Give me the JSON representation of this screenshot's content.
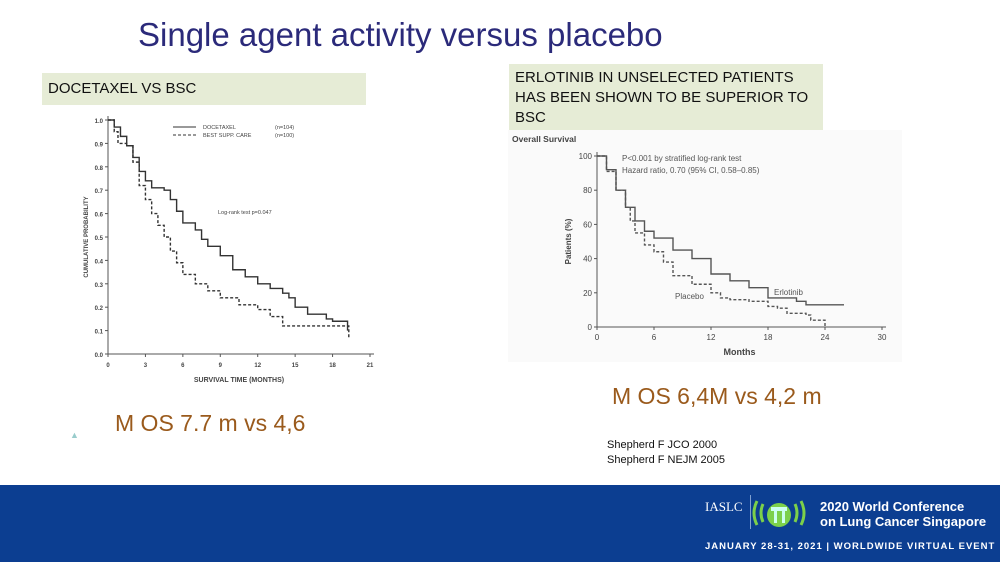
{
  "slide": {
    "title": "Single agent activity versus placebo",
    "label_left": "DOCETAXEL VS BSC",
    "label_right": "ERLOTINIB IN UNSELECTED PATIENTS HAS BEEN  SHOWN TO BE SUPERIOR TO BSC",
    "mos_left": "M OS 7.7 m vs 4,6",
    "mos_right": "M OS  6,4M  vs 4,2 m",
    "refs": [
      "Shepherd F  JCO 2000",
      "Shepherd F  NEJM 2005"
    ]
  },
  "footer": {
    "org": "IASLC",
    "conference_line1": "2020 World Conference",
    "conference_line2": "on Lung Cancer Singapore",
    "dates": "JANUARY 28-31, 2021 | WORLDWIDE VIRTUAL EVENT",
    "background": "#0c3e91"
  },
  "chart_data": [
    {
      "type": "line",
      "step": true,
      "xlabel": "SURVIVAL TIME (MONTHS)",
      "ylabel": "CUMULATIVE PROBABILITY",
      "xlim": [
        0,
        21
      ],
      "ylim": [
        0,
        1
      ],
      "xticks": [
        0,
        3,
        6,
        9,
        12,
        15,
        18,
        21
      ],
      "yticks": [
        "0.0",
        "0.1",
        "0.2",
        "0.3",
        "0.4",
        "0.5",
        "0.6",
        "0.7",
        "0.8",
        "0.9",
        "1.0"
      ],
      "annotation": "Log-rank test  p=0.047",
      "legend_placement": "top",
      "series": [
        {
          "name": "DOCETAXEL",
          "n": "(n=104)",
          "style": "solid",
          "x": [
            0,
            0.5,
            1,
            1.5,
            2,
            2.5,
            3,
            3.5,
            4.5,
            5,
            5.5,
            6,
            7,
            7.5,
            8,
            9,
            10,
            11,
            12,
            13,
            14,
            14.5,
            15,
            16,
            17.5,
            18,
            19,
            19.2
          ],
          "y": [
            1,
            0.97,
            0.93,
            0.89,
            0.84,
            0.78,
            0.74,
            0.71,
            0.7,
            0.66,
            0.61,
            0.56,
            0.53,
            0.49,
            0.46,
            0.42,
            0.36,
            0.33,
            0.3,
            0.28,
            0.26,
            0.24,
            0.2,
            0.17,
            0.15,
            0.14,
            0.14,
            0.1
          ]
        },
        {
          "name": "BEST SUPP. CARE",
          "n": "(n=100)",
          "style": "dashed",
          "x": [
            0,
            0.5,
            0.8,
            1.5,
            2,
            2.5,
            3,
            3.5,
            4,
            4.5,
            5,
            5.5,
            6,
            7,
            8,
            9,
            10,
            10.5,
            12,
            13,
            14,
            19,
            19.3
          ],
          "y": [
            1,
            0.95,
            0.9,
            0.89,
            0.82,
            0.72,
            0.66,
            0.6,
            0.55,
            0.5,
            0.44,
            0.39,
            0.34,
            0.3,
            0.27,
            0.24,
            0.24,
            0.21,
            0.19,
            0.16,
            0.12,
            0.12,
            0.07
          ]
        }
      ]
    },
    {
      "type": "line",
      "step": true,
      "title": "Overall Survival",
      "xlabel": "Months",
      "ylabel": "Patients (%)",
      "xlim": [
        0,
        30
      ],
      "ylim": [
        0,
        100
      ],
      "xticks": [
        0,
        6,
        12,
        18,
        24,
        30
      ],
      "yticks": [
        0,
        20,
        40,
        60,
        80,
        100
      ],
      "annotation_lines": [
        "P<0.001 by stratified log-rank test",
        "Hazard ratio, 0.70 (95% CI, 0.58–0.85)"
      ],
      "series": [
        {
          "name": "Erlotinib",
          "style": "solid",
          "x": [
            0,
            1,
            2,
            3,
            4,
            5,
            6,
            8,
            10,
            12,
            14,
            16,
            18,
            20,
            21,
            22,
            26
          ],
          "y": [
            100,
            92,
            80,
            70,
            62,
            56,
            52,
            45,
            40,
            31,
            27,
            23,
            17,
            17,
            15,
            13,
            13
          ]
        },
        {
          "name": "Placebo",
          "style": "dashed",
          "x": [
            0,
            1,
            2,
            3,
            3.5,
            4,
            5,
            6,
            7,
            8,
            10,
            12,
            13,
            14,
            16,
            18,
            19,
            20,
            22,
            22.5,
            23.5,
            24
          ],
          "y": [
            100,
            91,
            80,
            70,
            62,
            55,
            48,
            44,
            38,
            30,
            25,
            20,
            17,
            16,
            15,
            12,
            11,
            8,
            7,
            4,
            4,
            0
          ]
        }
      ]
    }
  ]
}
